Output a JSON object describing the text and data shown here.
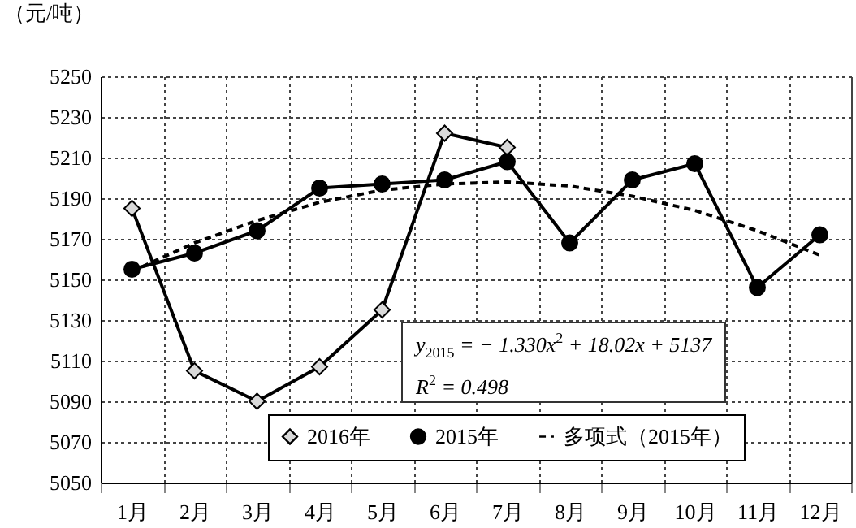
{
  "chart_data": {
    "type": "line",
    "ylabel": "（元/吨）",
    "categories": [
      "1月",
      "2月",
      "3月",
      "4月",
      "5月",
      "6月",
      "7月",
      "8月",
      "9月",
      "10月",
      "11月",
      "12月"
    ],
    "series": [
      {
        "name": "2016年",
        "color": "#d9d9d9",
        "marker": "diamond",
        "line_style": "solid",
        "values": [
          5185,
          5105,
          5090,
          5107,
          5135,
          5222,
          5215,
          null,
          null,
          null,
          null,
          null
        ]
      },
      {
        "name": "2015年",
        "color": "#000000",
        "marker": "circle",
        "line_style": "solid",
        "values": [
          5155,
          5163,
          5174,
          5195,
          5197,
          5199,
          5208,
          5168,
          5199,
          5207,
          5146,
          5172
        ]
      },
      {
        "name": "多项式（2015年）",
        "color": "#000000",
        "marker": "none",
        "line_style": "dashed",
        "values": [
          5154,
          5168,
          5179,
          5188,
          5194,
          5197,
          5198,
          5196,
          5191,
          5184,
          5174,
          5162
        ]
      }
    ],
    "ylim": [
      5050,
      5250
    ],
    "yticks": [
      5050,
      5070,
      5090,
      5110,
      5130,
      5150,
      5170,
      5190,
      5210,
      5230,
      5250
    ],
    "grid": true,
    "legend": "bottom",
    "annotations": [
      "y$_{2015}$ = − 1.330x$^{2}$ + 18.02x + 5137",
      "R$^{2}$ = 0.498"
    ]
  }
}
